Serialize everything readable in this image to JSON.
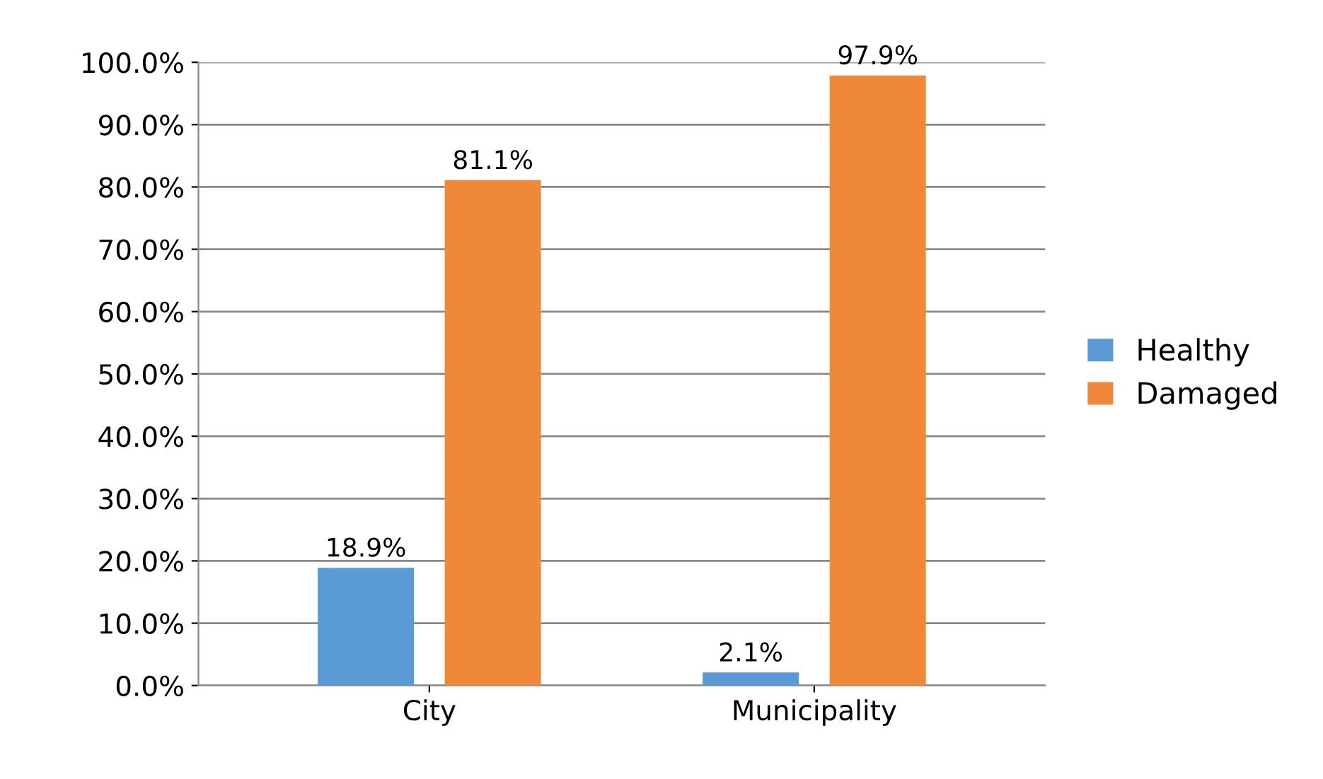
{
  "chart_data": {
    "type": "bar",
    "categories": [
      "City",
      "Municipality"
    ],
    "series": [
      {
        "name": "Healthy",
        "color": "#5b9bd5",
        "values": [
          18.9,
          2.1
        ],
        "value_labels": [
          "18.9%",
          "2.1%"
        ]
      },
      {
        "name": "Damaged",
        "color": "#f0883a",
        "values": [
          81.1,
          97.9
        ],
        "value_labels": [
          "81.1%",
          "97.9%"
        ]
      }
    ],
    "ylim": [
      0,
      100
    ],
    "yticks": [
      {
        "value": 0,
        "label": "0.0%"
      },
      {
        "value": 10,
        "label": "10.0%"
      },
      {
        "value": 20,
        "label": "20.0%"
      },
      {
        "value": 30,
        "label": "30.0%"
      },
      {
        "value": 40,
        "label": "40.0%"
      },
      {
        "value": 50,
        "label": "50.0%"
      },
      {
        "value": 60,
        "label": "60.0%"
      },
      {
        "value": 70,
        "label": "70.0%"
      },
      {
        "value": 80,
        "label": "80.0%"
      },
      {
        "value": 90,
        "label": "90.0%"
      },
      {
        "value": 100,
        "label": "100.0%"
      }
    ],
    "grid": "y",
    "legend": "right"
  }
}
